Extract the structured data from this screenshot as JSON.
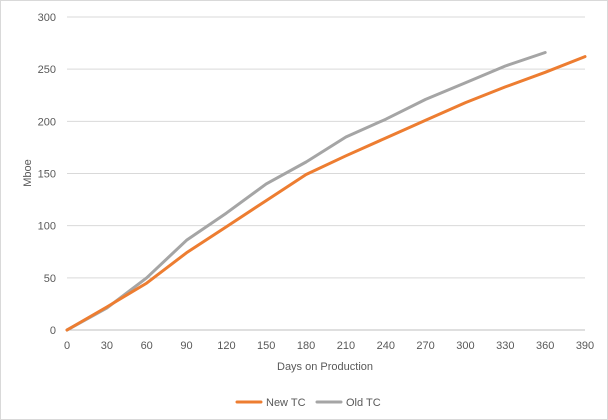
{
  "chart_data": {
    "type": "line",
    "title": "",
    "xlabel": "Days on Production",
    "ylabel": "Mboe",
    "xlim": [
      0,
      390
    ],
    "ylim": [
      0,
      300
    ],
    "x_ticks": [
      0,
      30,
      60,
      90,
      120,
      150,
      180,
      210,
      240,
      270,
      300,
      330,
      360,
      390
    ],
    "y_ticks": [
      0,
      50,
      100,
      150,
      200,
      250,
      300
    ],
    "grid": "horizontal",
    "legend_position": "bottom",
    "series": [
      {
        "name": "New TC",
        "color": "#ED7D31",
        "x": [
          0,
          30,
          60,
          90,
          120,
          150,
          180,
          210,
          240,
          270,
          300,
          330,
          360,
          390
        ],
        "y": [
          0,
          22,
          45,
          74,
          99,
          124,
          149,
          167,
          184,
          201,
          218,
          233,
          247,
          262
        ]
      },
      {
        "name": "Old TC",
        "color": "#A5A5A5",
        "x": [
          0,
          30,
          60,
          90,
          120,
          150,
          180,
          210,
          240,
          270,
          300,
          330,
          360
        ],
        "y": [
          0,
          21,
          50,
          86,
          112,
          140,
          161,
          185,
          202,
          221,
          237,
          253,
          266
        ]
      }
    ]
  }
}
